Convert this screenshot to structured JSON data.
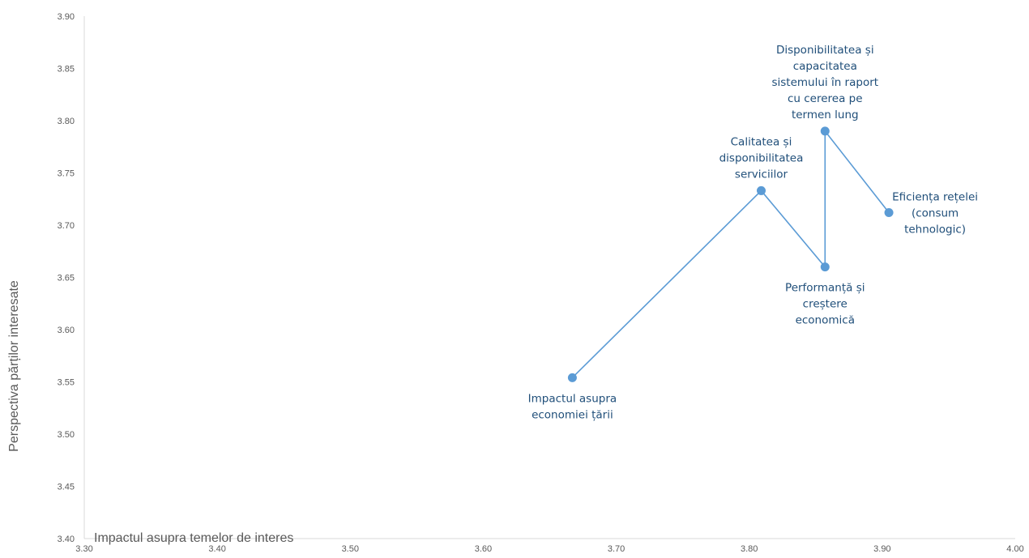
{
  "chart_data": {
    "type": "scatter",
    "xlabel": "Impactul asupra temelor de interes",
    "ylabel": "Perspectiva părților interesate",
    "xlim": [
      3.3,
      4.0
    ],
    "ylim": [
      3.4,
      3.9
    ],
    "x_ticks": [
      "3.30",
      "3.40",
      "3.50",
      "3.60",
      "3.70",
      "3.80",
      "3.90",
      "4.00"
    ],
    "y_ticks": [
      "3.40",
      "3.45",
      "3.50",
      "3.55",
      "3.60",
      "3.65",
      "3.70",
      "3.75",
      "3.80",
      "3.85",
      "3.90"
    ],
    "series_color": "#5b9bd5",
    "label_color": "#1f4e79",
    "grid": false,
    "connected_line": true,
    "points": [
      {
        "x": 3.667,
        "y": 3.554,
        "label": [
          "Impactul asupra",
          "economiei țării"
        ],
        "label_pos": "below"
      },
      {
        "x": 3.809,
        "y": 3.733,
        "label": [
          "Calitatea și",
          "disponibilitatea",
          "serviciilor"
        ],
        "label_pos": "above"
      },
      {
        "x": 3.857,
        "y": 3.66,
        "label": [
          "Performanță și",
          "creștere",
          "economică"
        ],
        "label_pos": "below"
      },
      {
        "x": 3.857,
        "y": 3.79,
        "label": [
          "Disponibilitatea și",
          "capacitatea",
          "sistemului în raport",
          "cu cererea pe",
          "termen lung"
        ],
        "label_pos": "above"
      },
      {
        "x": 3.905,
        "y": 3.712,
        "label": [
          "Eficiența rețelei",
          "(consum",
          "tehnologic)"
        ],
        "label_pos": "right"
      }
    ]
  }
}
